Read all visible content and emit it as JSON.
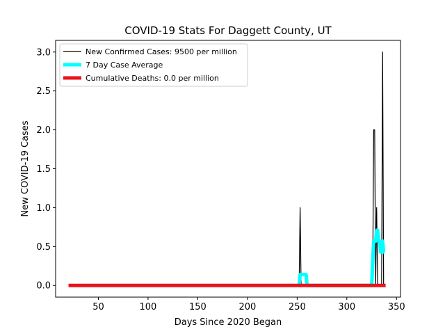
{
  "chart_data": {
    "type": "line",
    "title": "COVID-19 Stats For Daggett County, UT",
    "xlabel": "Days Since 2020 Began",
    "ylabel": "New COVID-19 Cases",
    "xlim": [
      7,
      354
    ],
    "ylim": [
      -0.15,
      3.15
    ],
    "xticks": [
      50,
      100,
      150,
      200,
      250,
      300,
      350
    ],
    "yticks": [
      0.0,
      0.5,
      1.0,
      1.5,
      2.0,
      2.5,
      3.0
    ],
    "xtick_labels": [
      "50",
      "100",
      "150",
      "200",
      "250",
      "300",
      "350"
    ],
    "ytick_labels": [
      "0.0",
      "0.5",
      "1.0",
      "1.5",
      "2.0",
      "2.5",
      "3.0"
    ],
    "legend_position": "top-left",
    "series": [
      {
        "name": "New Confirmed Cases: 9500 per million",
        "color": "#000000",
        "x": [
          20,
          252,
          253,
          254,
          326,
          327,
          328,
          329,
          330,
          331,
          332,
          333,
          334,
          335,
          336,
          337,
          338,
          339
        ],
        "y": [
          0,
          0,
          1,
          0,
          0,
          2,
          2,
          0,
          1,
          0,
          0,
          0,
          0,
          0,
          3,
          0,
          0,
          0
        ]
      },
      {
        "name": "7 Day Case Average",
        "color": "#00ffff",
        "x": [
          252,
          253,
          254,
          255,
          256,
          257,
          258,
          259,
          260,
          325,
          326,
          327,
          328,
          329,
          330,
          331,
          332,
          333,
          334,
          335,
          336,
          337,
          338
        ],
        "y": [
          0,
          0.14,
          0.14,
          0.14,
          0.14,
          0.14,
          0.14,
          0.14,
          0,
          0,
          0.29,
          0.57,
          0.57,
          0.57,
          0.71,
          0.71,
          0.57,
          0.57,
          0.43,
          0.43,
          0.57,
          0.43,
          0.43
        ]
      },
      {
        "name": "Cumulative Deaths: 0.0 per million",
        "color": "#e8141c",
        "x": [
          20,
          339
        ],
        "y": [
          0,
          0
        ]
      }
    ]
  }
}
